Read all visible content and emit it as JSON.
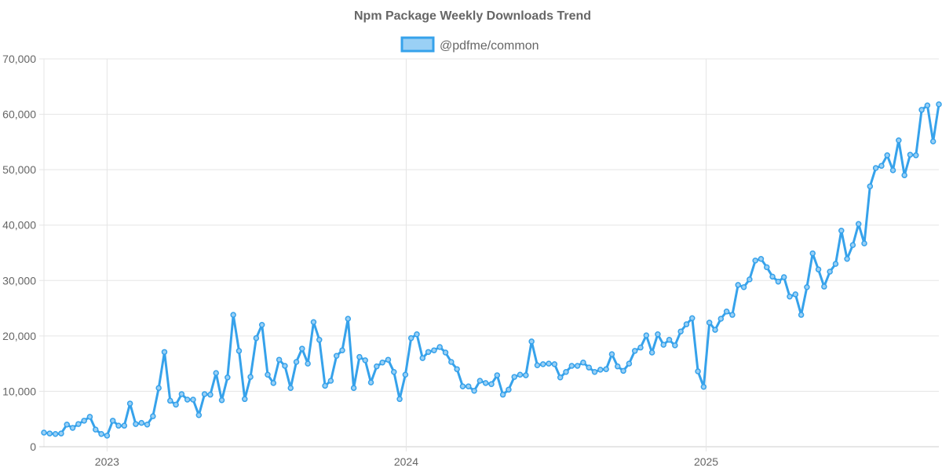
{
  "chart_data": {
    "type": "line",
    "title": "Npm Package Weekly Downloads Trend",
    "xlabel": "",
    "ylabel": "",
    "ylim": [
      0,
      70000
    ],
    "yticks": [
      0,
      10000,
      20000,
      30000,
      40000,
      50000,
      60000,
      70000
    ],
    "ytick_labels": [
      "0",
      "10,000",
      "20,000",
      "30,000",
      "40,000",
      "50,000",
      "60,000",
      "70,000"
    ],
    "xticks": [
      "2023-01-01",
      "2024-01-01",
      "2025-01-01"
    ],
    "xtick_labels": [
      "2023",
      "2024",
      "2025"
    ],
    "grid": true,
    "legend_position": "top",
    "colors": {
      "line": "#36a2eb",
      "fill": "#9ad0f5",
      "grid": "#e5e5e5",
      "text": "#666666"
    },
    "x": [
      "2022-10-16",
      "2022-10-23",
      "2022-10-30",
      "2022-11-06",
      "2022-11-13",
      "2022-11-20",
      "2022-11-27",
      "2022-12-04",
      "2022-12-11",
      "2022-12-18",
      "2022-12-25",
      "2023-01-01",
      "2023-01-08",
      "2023-01-15",
      "2023-01-22",
      "2023-01-29",
      "2023-02-05",
      "2023-02-12",
      "2023-02-19",
      "2023-02-26",
      "2023-03-05",
      "2023-03-12",
      "2023-03-19",
      "2023-03-26",
      "2023-04-02",
      "2023-04-09",
      "2023-04-16",
      "2023-04-23",
      "2023-04-30",
      "2023-05-07",
      "2023-05-14",
      "2023-05-21",
      "2023-05-28",
      "2023-06-04",
      "2023-06-11",
      "2023-06-18",
      "2023-06-25",
      "2023-07-02",
      "2023-07-09",
      "2023-07-16",
      "2023-07-23",
      "2023-07-30",
      "2023-08-06",
      "2023-08-13",
      "2023-08-20",
      "2023-08-27",
      "2023-09-03",
      "2023-09-10",
      "2023-09-17",
      "2023-09-24",
      "2023-10-01",
      "2023-10-08",
      "2023-10-15",
      "2023-10-22",
      "2023-10-29",
      "2023-11-05",
      "2023-11-12",
      "2023-11-19",
      "2023-11-26",
      "2023-12-03",
      "2023-12-10",
      "2023-12-17",
      "2023-12-24",
      "2023-12-31",
      "2024-01-07",
      "2024-01-14",
      "2024-01-21",
      "2024-01-28",
      "2024-02-04",
      "2024-02-11",
      "2024-02-18",
      "2024-02-25",
      "2024-03-03",
      "2024-03-10",
      "2024-03-17",
      "2024-03-24",
      "2024-03-31",
      "2024-04-07",
      "2024-04-14",
      "2024-04-21",
      "2024-04-28",
      "2024-05-05",
      "2024-05-12",
      "2024-05-19",
      "2024-05-26",
      "2024-06-02",
      "2024-06-09",
      "2024-06-16",
      "2024-06-23",
      "2024-06-30",
      "2024-07-07",
      "2024-07-14",
      "2024-07-21",
      "2024-07-28",
      "2024-08-04",
      "2024-08-11",
      "2024-08-18",
      "2024-08-25",
      "2024-09-01",
      "2024-09-08",
      "2024-09-15",
      "2024-09-22",
      "2024-09-29",
      "2024-10-06",
      "2024-10-13",
      "2024-10-20",
      "2024-10-27",
      "2024-11-03",
      "2024-11-10",
      "2024-11-17",
      "2024-11-24",
      "2024-12-01",
      "2024-12-08",
      "2024-12-15",
      "2024-12-22",
      "2024-12-29",
      "2025-01-05",
      "2025-01-12",
      "2025-01-19",
      "2025-01-26",
      "2025-02-02",
      "2025-02-09",
      "2025-02-16",
      "2025-02-23",
      "2025-03-02",
      "2025-03-09",
      "2025-03-16",
      "2025-03-23",
      "2025-03-30",
      "2025-04-06",
      "2025-04-13",
      "2025-04-20",
      "2025-04-27",
      "2025-05-04",
      "2025-05-11",
      "2025-05-18",
      "2025-05-25",
      "2025-06-01",
      "2025-06-08",
      "2025-06-15",
      "2025-06-22",
      "2025-06-29",
      "2025-07-06",
      "2025-07-13",
      "2025-07-20",
      "2025-07-27",
      "2025-08-03",
      "2025-08-10",
      "2025-08-17",
      "2025-08-24",
      "2025-08-31",
      "2025-09-07",
      "2025-09-14",
      "2025-09-21",
      "2025-09-28",
      "2025-10-05",
      "2025-10-12"
    ],
    "series": [
      {
        "name": "@pdfme/common",
        "values": [
          2550,
          2400,
          2300,
          2400,
          4000,
          3400,
          4100,
          4700,
          5400,
          3100,
          2300,
          2000,
          4700,
          3800,
          3800,
          7800,
          4100,
          4300,
          4000,
          5500,
          10600,
          17100,
          8300,
          7600,
          9500,
          8500,
          8500,
          5700,
          9500,
          9400,
          13300,
          8400,
          12500,
          23800,
          17300,
          8600,
          12600,
          19600,
          22000,
          13000,
          11500,
          15700,
          14600,
          10600,
          15300,
          17700,
          15000,
          22500,
          19300,
          11000,
          11900,
          16400,
          17400,
          23100,
          10600,
          16200,
          15600,
          11600,
          14500,
          15200,
          15700,
          13500,
          8600,
          13000,
          19600,
          20300,
          16000,
          17100,
          17400,
          18000,
          17000,
          15300,
          14000,
          10900,
          10900,
          10100,
          11900,
          11500,
          11300,
          12900,
          9400,
          10300,
          12600,
          13000,
          12900,
          19000,
          14700,
          14900,
          15000,
          14900,
          12500,
          13500,
          14600,
          14600,
          15200,
          14300,
          13500,
          13900,
          14000,
          16700,
          14500,
          13700,
          15000,
          17300,
          17900,
          20100,
          17000,
          20300,
          18400,
          19300,
          18300,
          20800,
          22100,
          23200,
          13600,
          10800,
          22400,
          21100,
          23100,
          24400,
          23800,
          29200,
          28800,
          30200,
          33600,
          33900,
          32400,
          30700,
          29800,
          30600,
          27100,
          27500,
          23800,
          28800,
          34900,
          32000,
          28900,
          31600,
          33000,
          39000,
          33900,
          36400,
          40200,
          36700,
          47000,
          50300,
          50700,
          52600,
          49900,
          55300,
          49000,
          52700,
          52600,
          60800,
          61600,
          55100,
          61800
        ]
      }
    ]
  }
}
